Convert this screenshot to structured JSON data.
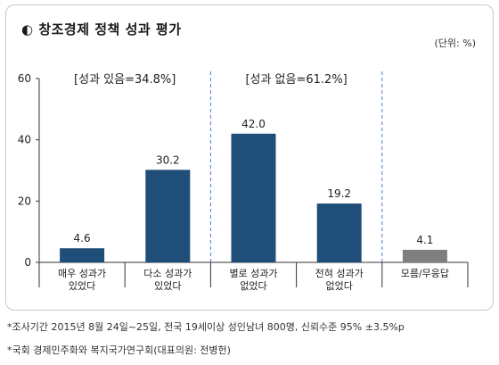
{
  "page": {
    "unit_label": "(단위: %)",
    "footnotes": [
      "*조사기간 2015년 8월 24일~25일, 전국 19세이상 성인남녀 800명, 신뢰수준 95% ±3.5%p",
      "*국회 경제민주화와 복지국가연구회(대표의원: 전병헌)"
    ]
  },
  "chart_data": {
    "type": "bar",
    "title": "창조경제 정책 성과 평가",
    "title_icon": "half-circle-icon",
    "categories": [
      [
        "매우 성과가",
        "있었다"
      ],
      [
        "다소 성과가",
        "있었다"
      ],
      [
        "별로 성과가",
        "없었다"
      ],
      [
        "전혀 성과가",
        "없었다"
      ],
      [
        "모름/무응답"
      ]
    ],
    "values": [
      4.6,
      30.2,
      42.0,
      19.2,
      4.1
    ],
    "value_labels": [
      "4.6",
      "30.2",
      "42.0",
      "19.2",
      "4.1"
    ],
    "bar_colors": [
      "#1f4e79",
      "#1f4e79",
      "#1f4e79",
      "#1f4e79",
      "#7f7f7f"
    ],
    "yticks": [
      0,
      20,
      40,
      60
    ],
    "ylim": [
      0,
      60
    ],
    "xlabel": "",
    "ylabel": "",
    "grid": false,
    "group_annotations": [
      "[성과 있음=34.8%]",
      "[성과 없음=61.2%]"
    ]
  }
}
